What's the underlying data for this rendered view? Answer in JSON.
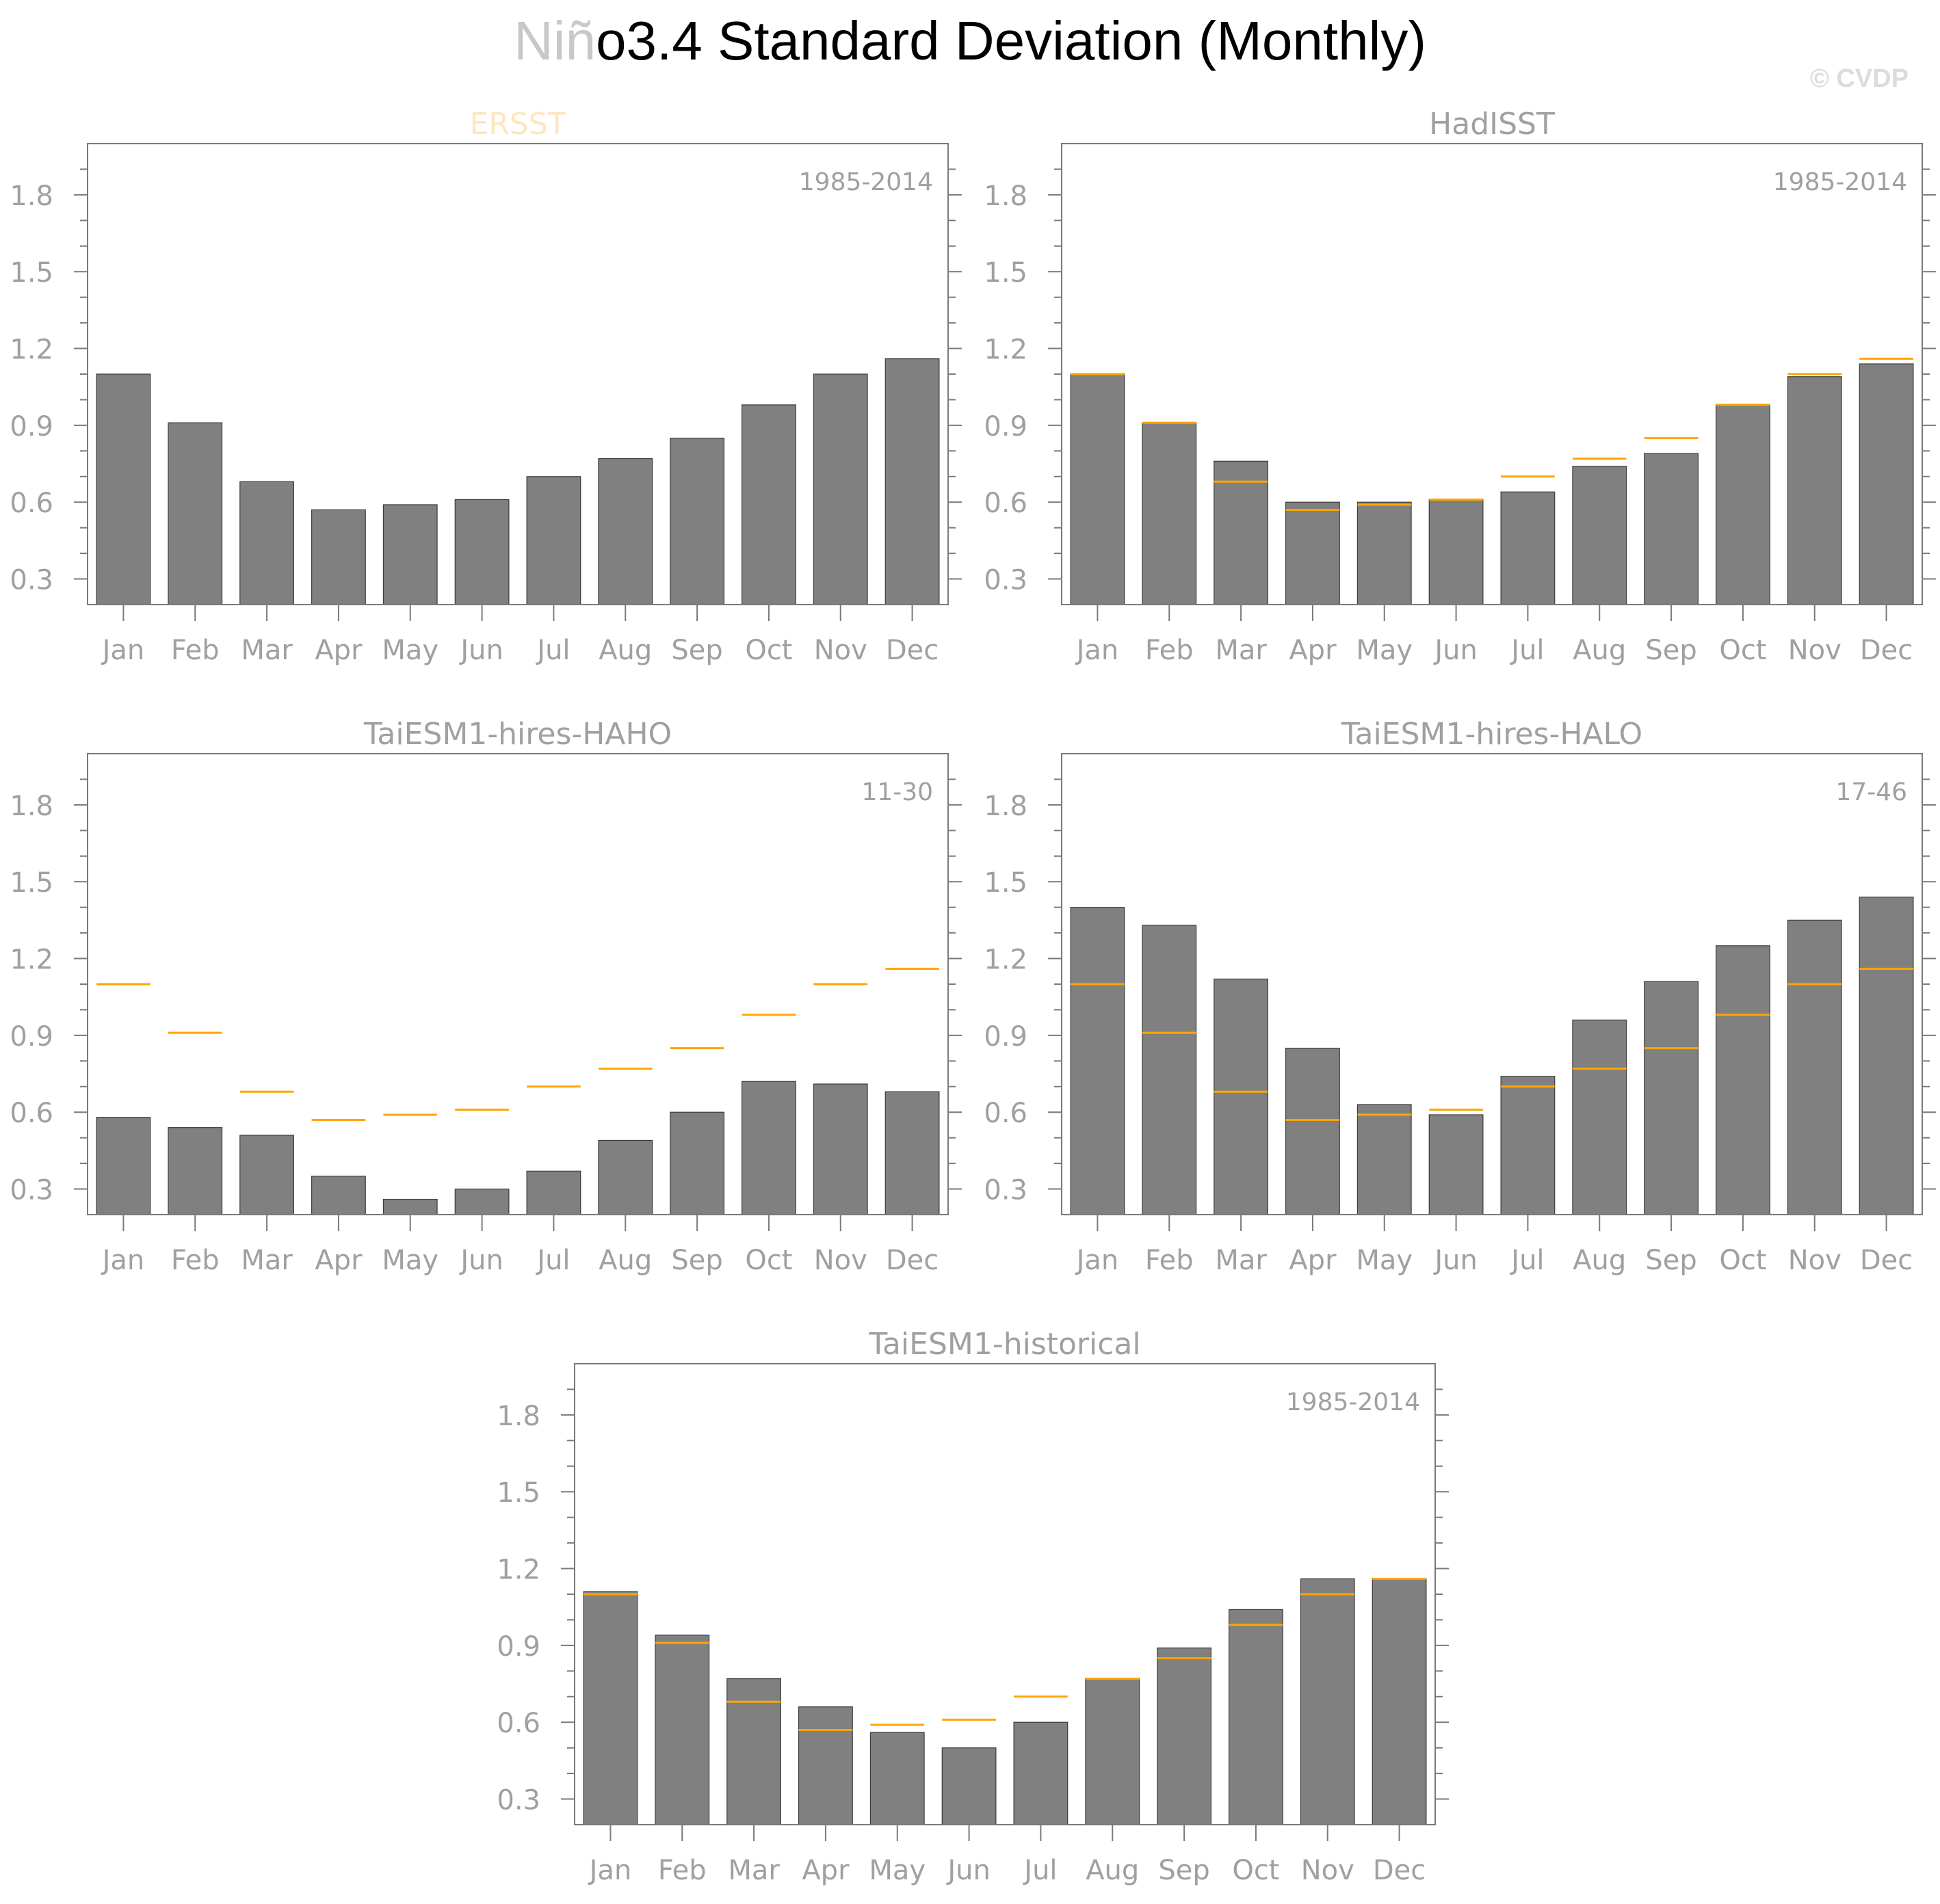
{
  "title_prefix": "Niñ",
  "title_rest": "o3.4 Standard Deviation (Monthly)",
  "watermark": "© CVDP",
  "colors": {
    "bar": "#808080",
    "bar_edge": "#3c3c3c",
    "reference_line": "#ffa500",
    "axis": "#7a7a7a",
    "label": "#a0a0a0",
    "ersst_title": "#fde6c0"
  },
  "chart_data": [
    {
      "type": "bar",
      "title": "ERSST",
      "period": "1985-2014",
      "categories": [
        "Jan",
        "Feb",
        "Mar",
        "Apr",
        "May",
        "Jun",
        "Jul",
        "Aug",
        "Sep",
        "Oct",
        "Nov",
        "Dec"
      ],
      "values": [
        1.1,
        0.91,
        0.68,
        0.57,
        0.59,
        0.61,
        0.7,
        0.77,
        0.85,
        0.98,
        1.1,
        1.16
      ],
      "reference": [],
      "yticks": [
        0.3,
        0.6,
        0.9,
        1.2,
        1.5,
        1.8
      ],
      "ylim": [
        0.2,
        2.0
      ]
    },
    {
      "type": "bar",
      "title": "HadISST",
      "period": "1985-2014",
      "categories": [
        "Jan",
        "Feb",
        "Mar",
        "Apr",
        "May",
        "Jun",
        "Jul",
        "Aug",
        "Sep",
        "Oct",
        "Nov",
        "Dec"
      ],
      "values": [
        1.1,
        0.91,
        0.76,
        0.6,
        0.6,
        0.61,
        0.64,
        0.74,
        0.79,
        0.98,
        1.09,
        1.14
      ],
      "reference": [
        1.1,
        0.91,
        0.68,
        0.57,
        0.59,
        0.61,
        0.7,
        0.77,
        0.85,
        0.98,
        1.1,
        1.16
      ],
      "yticks": [
        0.3,
        0.6,
        0.9,
        1.2,
        1.5,
        1.8
      ],
      "ylim": [
        0.2,
        2.0
      ]
    },
    {
      "type": "bar",
      "title": "TaiESM1-hires-HAHO",
      "period": "11-30",
      "categories": [
        "Jan",
        "Feb",
        "Mar",
        "Apr",
        "May",
        "Jun",
        "Jul",
        "Aug",
        "Sep",
        "Oct",
        "Nov",
        "Dec"
      ],
      "values": [
        0.58,
        0.54,
        0.51,
        0.35,
        0.26,
        0.3,
        0.37,
        0.49,
        0.6,
        0.72,
        0.71,
        0.68
      ],
      "reference": [
        1.1,
        0.91,
        0.68,
        0.57,
        0.59,
        0.61,
        0.7,
        0.77,
        0.85,
        0.98,
        1.1,
        1.16
      ],
      "yticks": [
        0.3,
        0.6,
        0.9,
        1.2,
        1.5,
        1.8
      ],
      "ylim": [
        0.2,
        2.0
      ]
    },
    {
      "type": "bar",
      "title": "TaiESM1-hires-HALO",
      "period": "17-46",
      "categories": [
        "Jan",
        "Feb",
        "Mar",
        "Apr",
        "May",
        "Jun",
        "Jul",
        "Aug",
        "Sep",
        "Oct",
        "Nov",
        "Dec"
      ],
      "values": [
        1.4,
        1.33,
        1.12,
        0.85,
        0.63,
        0.59,
        0.74,
        0.96,
        1.11,
        1.25,
        1.35,
        1.44
      ],
      "reference": [
        1.1,
        0.91,
        0.68,
        0.57,
        0.59,
        0.61,
        0.7,
        0.77,
        0.85,
        0.98,
        1.1,
        1.16
      ],
      "yticks": [
        0.3,
        0.6,
        0.9,
        1.2,
        1.5,
        1.8
      ],
      "ylim": [
        0.2,
        2.0
      ]
    },
    {
      "type": "bar",
      "title": "TaiESM1-historical",
      "period": "1985-2014",
      "categories": [
        "Jan",
        "Feb",
        "Mar",
        "Apr",
        "May",
        "Jun",
        "Jul",
        "Aug",
        "Sep",
        "Oct",
        "Nov",
        "Dec"
      ],
      "values": [
        1.11,
        0.94,
        0.77,
        0.66,
        0.56,
        0.5,
        0.6,
        0.77,
        0.89,
        1.04,
        1.16,
        1.16
      ],
      "reference": [
        1.1,
        0.91,
        0.68,
        0.57,
        0.59,
        0.61,
        0.7,
        0.77,
        0.85,
        0.98,
        1.1,
        1.16
      ],
      "yticks": [
        0.3,
        0.6,
        0.9,
        1.2,
        1.5,
        1.8
      ],
      "ylim": [
        0.2,
        2.0
      ]
    }
  ]
}
